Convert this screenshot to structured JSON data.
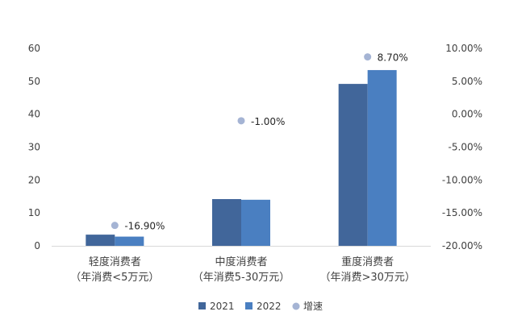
{
  "chart_data": {
    "type": "bar",
    "categories": [
      [
        "轻度消费者",
        "（年消费<5万元）"
      ],
      [
        "中度消费者",
        "（年消费5-30万元）"
      ],
      [
        "重度消费者",
        "（年消费>30万元）"
      ]
    ],
    "series": [
      {
        "name": "2021",
        "values": [
          3.4,
          14.2,
          49.2
        ],
        "color": "#41669a"
      },
      {
        "name": "2022",
        "values": [
          2.8,
          14.0,
          53.4
        ],
        "color": "#4a7fc1"
      }
    ],
    "growth_series": {
      "name": "增速",
      "values": [
        -16.9,
        -1.0,
        8.7
      ],
      "labels": [
        "-16.90%",
        "-1.00%",
        "8.70%"
      ],
      "color": "#a5b4d4"
    },
    "y_left": {
      "min": 0,
      "max": 60,
      "ticks": [
        "0",
        "10",
        "20",
        "30",
        "40",
        "50",
        "60"
      ]
    },
    "y_right": {
      "min": -20,
      "max": 10,
      "ticks": [
        "-20.00%",
        "-15.00%",
        "-10.00%",
        "-5.00%",
        "0.00%",
        "5.00%",
        "10.00%"
      ]
    },
    "legend_position": "bottom",
    "grid": false
  }
}
